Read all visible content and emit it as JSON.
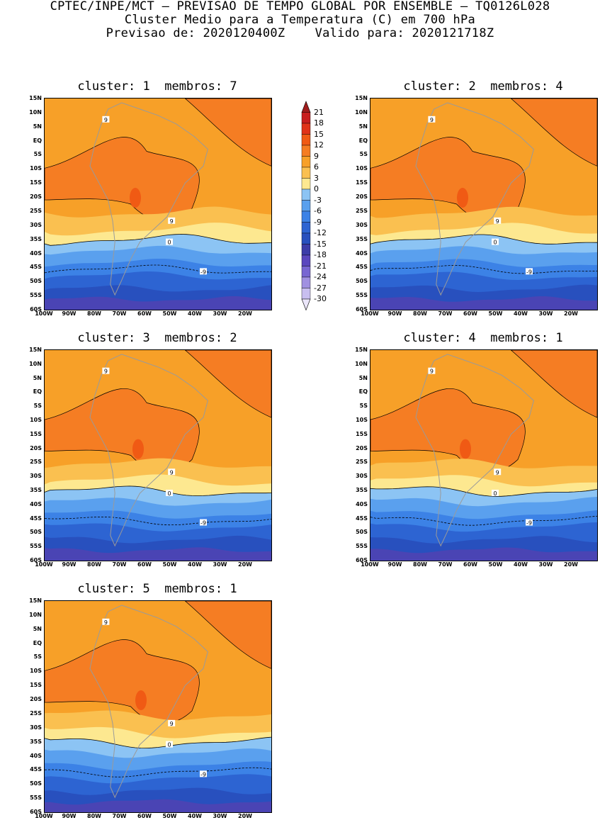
{
  "header": {
    "line1": "CPTEC/INPE/MCT – PREVISAO DE TEMPO GLOBAL POR ENSEMBLE – TQ0126L028",
    "line2": "Cluster Medio para a Temperatura (C) em 700 hPa",
    "line3": "Previsao de: 2020120400Z    Valido para: 2020121718Z"
  },
  "panels": [
    {
      "title": "cluster: 1  membros: 7"
    },
    {
      "title": "cluster: 2  membros: 4"
    },
    {
      "title": "cluster: 3  membros: 2"
    },
    {
      "title": "cluster: 4  membros: 1"
    },
    {
      "title": "cluster: 5  membros: 1"
    }
  ],
  "lat_labels": [
    "15N",
    "10N",
    "5N",
    "EQ",
    "5S",
    "10S",
    "15S",
    "20S",
    "25S",
    "30S",
    "35S",
    "40S",
    "45S",
    "50S",
    "55S",
    "60S"
  ],
  "lon_labels": [
    "100W",
    "90W",
    "80W",
    "70W",
    "60W",
    "50W",
    "40W",
    "30W",
    "20W"
  ],
  "contour_labels": {
    "nine": "9",
    "zero": "0",
    "minus_nine": "-9"
  },
  "colorbar": {
    "levels": [
      "21",
      "18",
      "15",
      "12",
      "9",
      "6",
      "3",
      "0",
      "-3",
      "-6",
      "-9",
      "-12",
      "-15",
      "-18",
      "-21",
      "-24",
      "-27",
      "-30"
    ],
    "colors": [
      "#a01c1c",
      "#c81e1e",
      "#e03218",
      "#f05a14",
      "#f57d23",
      "#f7a028",
      "#fac050",
      "#fde890",
      "#8cc4f4",
      "#5aa0ee",
      "#3c82e6",
      "#2d64d2",
      "#2850be",
      "#3c3ca8",
      "#5a46be",
      "#7866d2",
      "#a090e1",
      "#c8bef0",
      "#ebe6fa"
    ]
  }
}
